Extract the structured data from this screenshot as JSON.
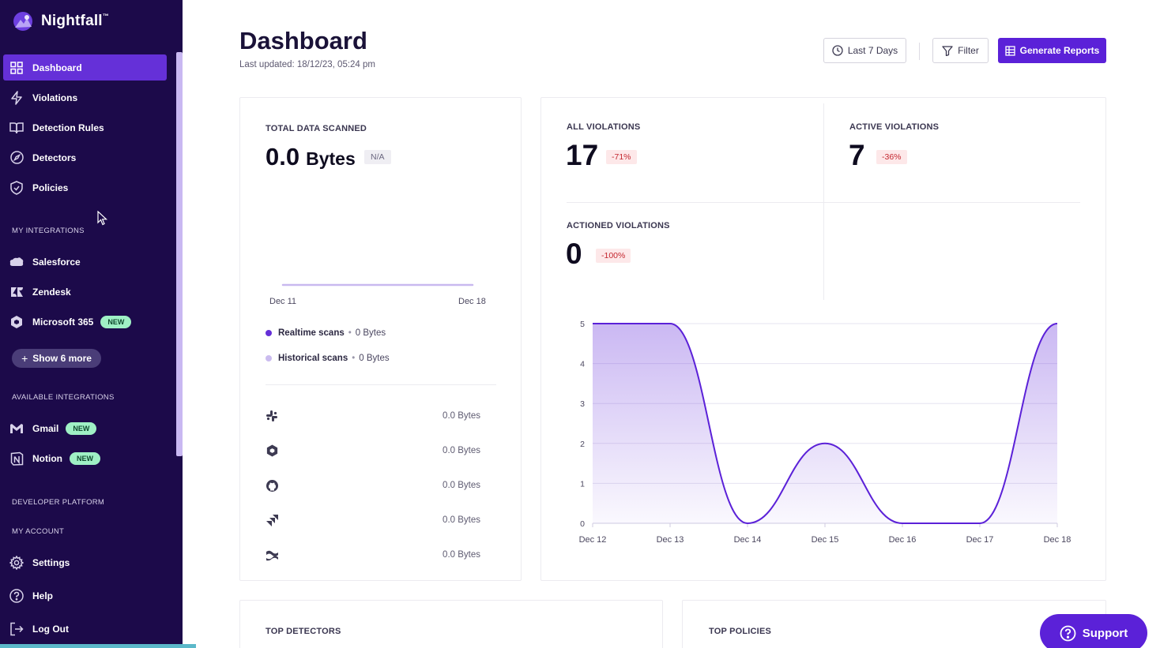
{
  "brand": {
    "name": "Nightfall",
    "tm": "™"
  },
  "sidebar": {
    "nav": [
      {
        "label": "Dashboard",
        "icon": "grid-icon"
      },
      {
        "label": "Violations",
        "icon": "lightning-icon"
      },
      {
        "label": "Detection Rules",
        "icon": "book-icon"
      },
      {
        "label": "Detectors",
        "icon": "compass-icon"
      },
      {
        "label": "Policies",
        "icon": "shield-icon"
      }
    ],
    "my_integrations_label": "MY INTEGRATIONS",
    "my_integrations": [
      {
        "label": "Salesforce",
        "icon": "salesforce-icon"
      },
      {
        "label": "Zendesk",
        "icon": "zendesk-icon"
      },
      {
        "label": "Microsoft 365",
        "icon": "microsoft-365-icon",
        "badge": "NEW"
      }
    ],
    "show_more": "Show 6 more",
    "available_integrations_label": "AVAILABLE INTEGRATIONS",
    "available_integrations": [
      {
        "label": "Gmail",
        "icon": "gmail-icon",
        "badge": "NEW"
      },
      {
        "label": "Notion",
        "icon": "notion-icon",
        "badge": "NEW"
      }
    ],
    "developer_platform_label": "DEVELOPER PLATFORM",
    "my_account_label": "MY ACCOUNT",
    "account_items": [
      {
        "label": "Settings",
        "icon": "gear-icon"
      },
      {
        "label": "Help",
        "icon": "help-icon"
      },
      {
        "label": "Log Out",
        "icon": "logout-icon"
      }
    ]
  },
  "header": {
    "title": "Dashboard",
    "last_updated": "Last updated: 18/12/23, 05:24 pm",
    "date_range": "Last 7 Days",
    "filter": "Filter",
    "generate": "Generate Reports"
  },
  "data_scanned": {
    "title": "TOTAL DATA SCANNED",
    "value": "0.0",
    "unit": "Bytes",
    "badge": "N/A",
    "axis_start": "Dec 11",
    "axis_end": "Dec 18",
    "legend": [
      {
        "name": "Realtime scans",
        "value": "0 Bytes",
        "color": "#6530d8"
      },
      {
        "name": "Historical scans",
        "value": "0 Bytes",
        "color": "#cbbcef"
      }
    ],
    "integrations": [
      {
        "icon": "slack-icon",
        "value": "0.0 Bytes"
      },
      {
        "icon": "microsoft-365-icon",
        "value": "0.0 Bytes"
      },
      {
        "icon": "github-icon",
        "value": "0.0 Bytes"
      },
      {
        "icon": "jira-icon",
        "value": "0.0 Bytes"
      },
      {
        "icon": "confluence-icon",
        "value": "0.0 Bytes"
      }
    ]
  },
  "violations": {
    "all": {
      "title": "ALL VIOLATIONS",
      "value": "17",
      "delta": "-71%"
    },
    "active": {
      "title": "ACTIVE VIOLATIONS",
      "value": "7",
      "delta": "-36%"
    },
    "actioned": {
      "title": "ACTIONED VIOLATIONS",
      "value": "0",
      "delta": "-100%"
    }
  },
  "chart_data": {
    "type": "area",
    "x": [
      "Dec 12",
      "Dec 13",
      "Dec 14",
      "Dec 15",
      "Dec 16",
      "Dec 17",
      "Dec 18"
    ],
    "series": [
      {
        "values": [
          5,
          5,
          0,
          2,
          0,
          0,
          5
        ]
      }
    ],
    "yticks": [
      0,
      1,
      2,
      3,
      4,
      5
    ],
    "ylim": [
      0,
      5
    ],
    "grid": true,
    "color": "#5b21d8"
  },
  "bottom_cards": {
    "top_detectors": "TOP DETECTORS",
    "top_policies": "TOP POLICIES"
  },
  "support": "Support",
  "colors": {
    "sidebar_bg": "#1c0a4a",
    "accent": "#5b21d8",
    "active_nav": "#6530d8"
  }
}
